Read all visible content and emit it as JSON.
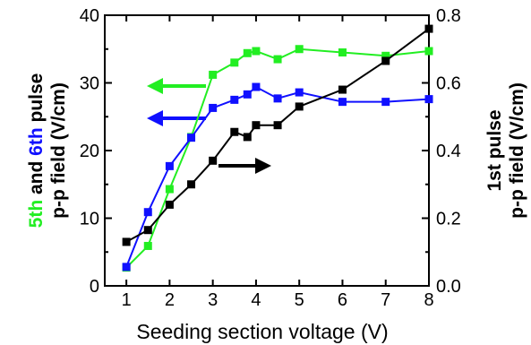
{
  "chart_data": {
    "type": "line",
    "xlabel": "Seeding section voltage (V)",
    "xlim": [
      0.5,
      8
    ],
    "xticks": [
      "1",
      "2",
      "3",
      "4",
      "5",
      "6",
      "7",
      "8"
    ],
    "left_axis": {
      "label_line1_parts": [
        {
          "text": "5th",
          "color": "#22ee22"
        },
        {
          "text": " and ",
          "color": "#000000"
        },
        {
          "text": "6th",
          "color": "#1010ff"
        },
        {
          "text": " pulse",
          "color": "#000000"
        }
      ],
      "label_line2": "p-p field (V/cm)",
      "ylim": [
        0,
        40
      ],
      "ticks": [
        "0",
        "10",
        "20",
        "30",
        "40"
      ]
    },
    "right_axis": {
      "label_line1": "1st pulse",
      "label_line2": "p-p field (V/cm)",
      "ylim": [
        0,
        0.8
      ],
      "ticks": [
        "0.0",
        "0.2",
        "0.4",
        "0.6",
        "0.8"
      ]
    },
    "series": [
      {
        "color": "#22ee22",
        "axis": "left",
        "x": [
          1,
          1.5,
          2,
          2.5,
          3,
          3.5,
          3.8,
          4,
          4.5,
          5,
          6,
          7,
          8
        ],
        "y": [
          2.7,
          5.9,
          14.3,
          22.0,
          31.2,
          33.0,
          34.4,
          34.7,
          33.5,
          35.0,
          34.5,
          34.0,
          34.7
        ]
      },
      {
        "color": "#1010ff",
        "axis": "left",
        "x": [
          1,
          1.5,
          2,
          2.5,
          3,
          3.5,
          3.8,
          4,
          4.5,
          5,
          6,
          7,
          8
        ],
        "y": [
          2.8,
          10.9,
          17.7,
          21.9,
          26.3,
          27.5,
          28.3,
          29.4,
          27.7,
          28.6,
          27.2,
          27.2,
          27.6
        ]
      },
      {
        "color": "#000000",
        "axis": "right",
        "x": [
          1,
          1.5,
          2,
          2.5,
          3,
          3.5,
          3.8,
          4,
          4.5,
          5,
          6,
          7,
          8
        ],
        "y": [
          0.13,
          0.165,
          0.24,
          0.3,
          0.37,
          0.455,
          0.44,
          0.475,
          0.475,
          0.53,
          0.58,
          0.665,
          0.76
        ]
      }
    ],
    "grid": false
  }
}
